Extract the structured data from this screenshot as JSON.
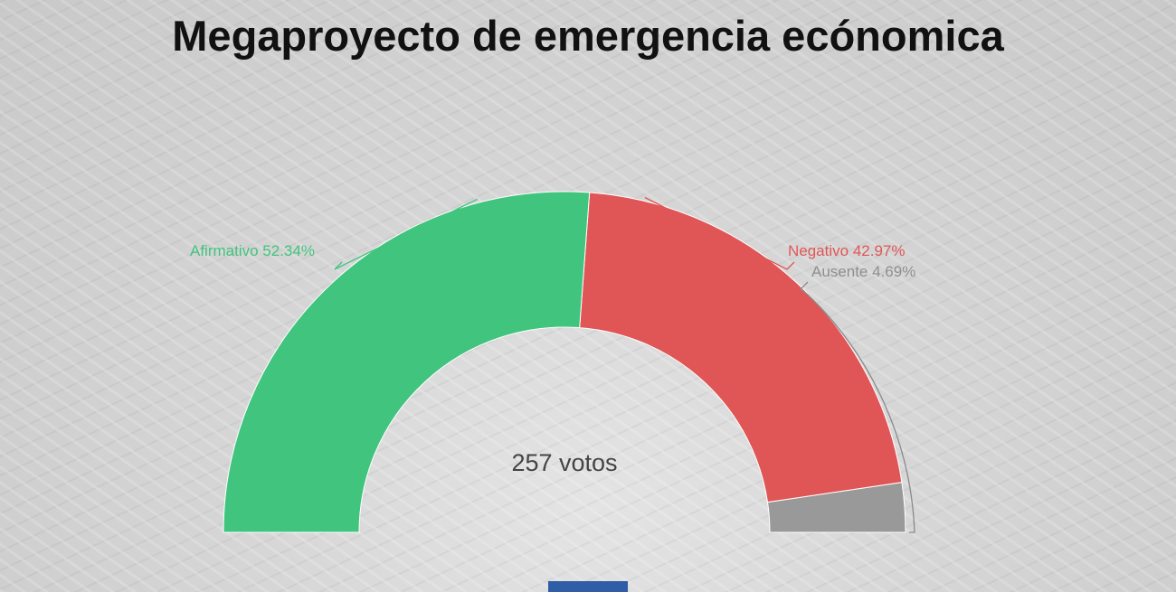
{
  "title": "Megaproyecto de emergencia ecónomica",
  "chart_data": {
    "type": "pie",
    "subtype": "semicircle-donut",
    "title": "Megaproyecto de emergencia ecónomica",
    "center_label": "257 votos",
    "slices": [
      {
        "name": "Afirmativo",
        "value": 52.34,
        "label": "Afirmativo 52.34%",
        "color": "#41c47e"
      },
      {
        "name": "Negativo",
        "value": 42.97,
        "label": "Negativo 42.97%",
        "color": "#e05656"
      },
      {
        "name": "Ausente",
        "value": 4.69,
        "label": "Ausente 4.69%",
        "color": "#999999"
      }
    ]
  }
}
